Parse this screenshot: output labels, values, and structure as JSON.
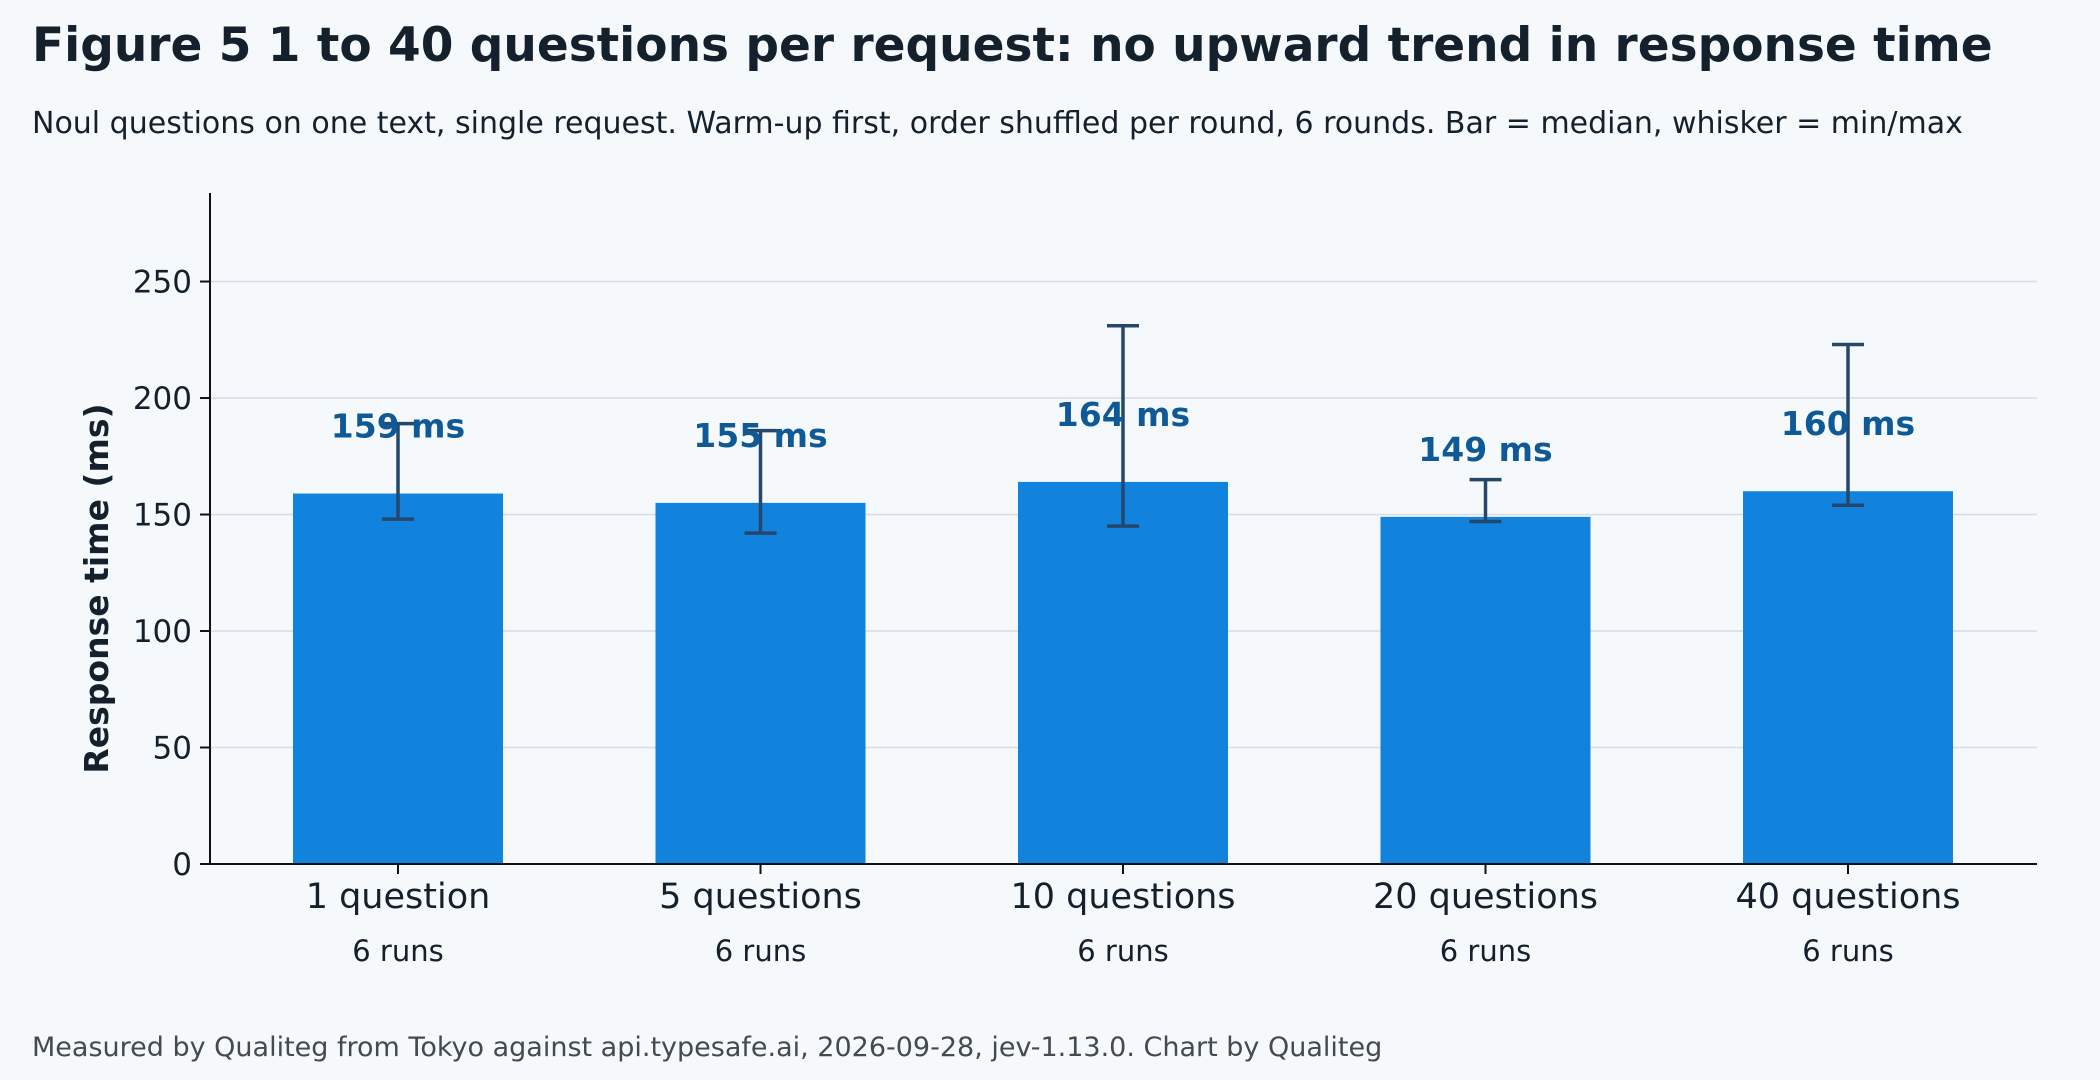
{
  "title": "Figure 5  1 to 40 questions per request: no upward trend in response time",
  "subtitle": "Noul questions on one text, single request. Warm-up first, order shuffled per round, 6 rounds. Bar = median, whisker = min/max",
  "footer": "Measured by Qualiteg from Tokyo against api.typesafe.ai, 2026-09-28, jev-1.13.0. Chart by Qualiteg",
  "colors": {
    "bar": "#1283dc",
    "whisker": "#24476b",
    "value_label": "#0f5a96",
    "grid": "#d7dee6",
    "axis": "#111111",
    "background": "#f6f9fc"
  },
  "chart_data": {
    "type": "bar",
    "categories": [
      "1 question",
      "5 questions",
      "10 questions",
      "20 questions",
      "40 questions"
    ],
    "sublabels": [
      "6 runs",
      "6 runs",
      "6 runs",
      "6 runs",
      "6 runs"
    ],
    "values": [
      159,
      155,
      164,
      149,
      160
    ],
    "value_labels": [
      "159 ms",
      "155 ms",
      "164 ms",
      "149 ms",
      "160 ms"
    ],
    "whisker_min": [
      148,
      142,
      145,
      147,
      154
    ],
    "whisker_max": [
      189,
      186,
      231,
      165,
      223
    ],
    "ylabel": "Response time (ms)",
    "xlabel": "",
    "ylim": [
      0,
      288
    ],
    "yticks": [
      0,
      50,
      100,
      150,
      200,
      250
    ],
    "grid": true
  }
}
